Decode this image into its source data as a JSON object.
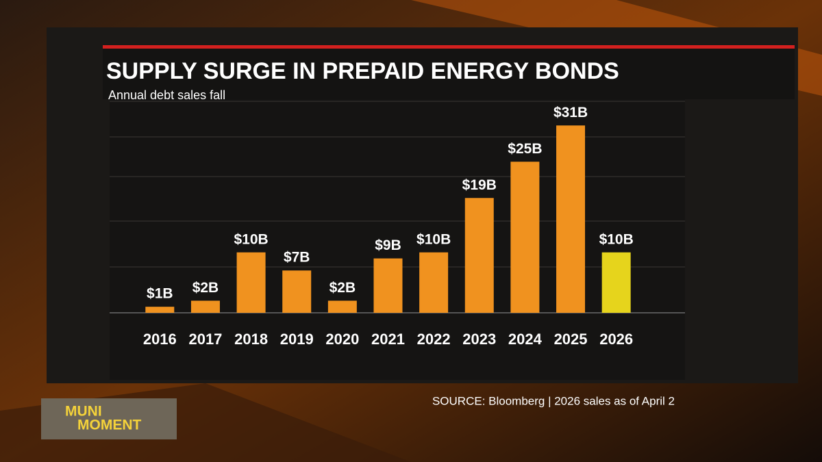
{
  "chart_data": {
    "type": "bar",
    "title": "SUPPLY SURGE IN PREPAID ENERGY BONDS",
    "subtitle": "Annual debt sales fall",
    "categories": [
      "2016",
      "2017",
      "2018",
      "2019",
      "2020",
      "2021",
      "2022",
      "2023",
      "2024",
      "2025",
      "2026"
    ],
    "values": [
      1,
      2,
      10,
      7,
      2,
      9,
      10,
      19,
      25,
      31,
      10
    ],
    "value_labels": [
      "$1B",
      "$2B",
      "$10B",
      "$7B",
      "$2B",
      "$9B",
      "$10B",
      "$19B",
      "$25B",
      "$31B",
      "$10B"
    ],
    "colors": [
      "#f0921f",
      "#f0921f",
      "#f0921f",
      "#f0921f",
      "#f0921f",
      "#f0921f",
      "#f0921f",
      "#f0921f",
      "#f0921f",
      "#f0921f",
      "#e6d41c"
    ],
    "ylim": [
      0,
      35
    ],
    "grid": true,
    "source": "SOURCE: Bloomberg | 2026 sales as of April 2"
  },
  "overlay": {
    "lines": [
      "MUNI",
      "MOMENT"
    ]
  }
}
